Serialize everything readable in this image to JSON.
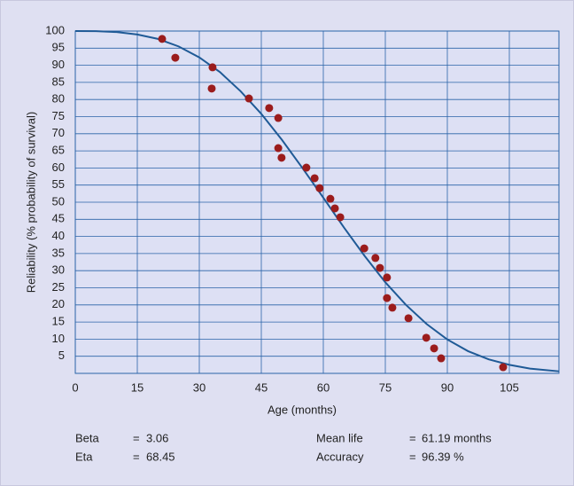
{
  "chart_data": {
    "type": "scatter",
    "xlabel": "Age (months)",
    "ylabel": "Reliability (% probability of survival)",
    "xlim": [
      0,
      117
    ],
    "ylim": [
      0,
      100
    ],
    "xticks": [
      0,
      15,
      30,
      45,
      60,
      75,
      90,
      105
    ],
    "yticks": [
      5,
      10,
      15,
      20,
      25,
      30,
      35,
      40,
      45,
      50,
      55,
      60,
      65,
      70,
      75,
      80,
      85,
      90,
      95,
      100
    ],
    "grid": true,
    "series": [
      {
        "type": "line",
        "color": "#1f5a96",
        "x": [
          0,
          5,
          10,
          15,
          20,
          25,
          30,
          35,
          40,
          45,
          50,
          55,
          60,
          65,
          70,
          75,
          80,
          85,
          90,
          95,
          100,
          105,
          110,
          117
        ],
        "values": [
          100,
          99.97,
          99.7,
          99.0,
          97.7,
          95.5,
          92.3,
          88.0,
          82.4,
          75.8,
          68.2,
          59.9,
          51.3,
          42.6,
          34.3,
          26.6,
          20.0,
          14.4,
          9.9,
          6.5,
          4.1,
          2.5,
          1.4,
          0.6
        ]
      },
      {
        "type": "scatter",
        "color": "#9b1c1c",
        "x": [
          21,
          24.2,
          33.2,
          33,
          42,
          46.9,
          49.1,
          49.1,
          49.9,
          55.9,
          57.9,
          59.1,
          61.7,
          62.8,
          64.1,
          69.9,
          72.6,
          73.7,
          75.4,
          75.4,
          76.7,
          80.6,
          84.9,
          86.8,
          88.5,
          103.5
        ],
        "values": [
          97.7,
          92.2,
          89.4,
          83.2,
          80.3,
          77.5,
          74.6,
          65.8,
          63,
          60.1,
          57,
          54.1,
          51,
          48.2,
          45.6,
          36.5,
          33.7,
          30.8,
          28,
          22,
          19.2,
          16.1,
          10.4,
          7.3,
          4.4,
          1.8
        ]
      }
    ]
  },
  "stats": {
    "separator": "=",
    "items": [
      {
        "label": "Beta",
        "value": "3.06"
      },
      {
        "label": "Eta",
        "value": "68.45"
      },
      {
        "label": "Mean life",
        "value": "61.19 months"
      },
      {
        "label": "Accuracy",
        "value": "96.39 %"
      }
    ]
  }
}
